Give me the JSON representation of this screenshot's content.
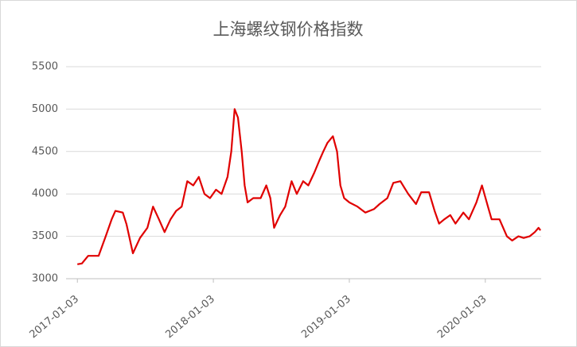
{
  "chart_data": {
    "type": "line",
    "title": "上海螺纹钢价格指数",
    "x": [
      "2017-01-03",
      "2017-01-15",
      "2017-02-01",
      "2017-03-01",
      "2017-03-20",
      "2017-04-05",
      "2017-04-15",
      "2017-05-05",
      "2017-05-15",
      "2017-06-01",
      "2017-06-20",
      "2017-07-10",
      "2017-07-25",
      "2017-08-10",
      "2017-08-25",
      "2017-09-10",
      "2017-09-25",
      "2017-10-10",
      "2017-10-25",
      "2017-11-10",
      "2017-11-25",
      "2017-12-10",
      "2017-12-25",
      "2018-01-10",
      "2018-01-25",
      "2018-02-10",
      "2018-02-20",
      "2018-03-01",
      "2018-03-10",
      "2018-03-20",
      "2018-03-28",
      "2018-04-05",
      "2018-04-20",
      "2018-05-10",
      "2018-05-25",
      "2018-06-05",
      "2018-06-15",
      "2018-07-01",
      "2018-07-15",
      "2018-08-01",
      "2018-08-15",
      "2018-09-01",
      "2018-09-15",
      "2018-10-01",
      "2018-10-15",
      "2018-10-25",
      "2018-11-05",
      "2018-11-20",
      "2018-12-01",
      "2018-12-10",
      "2018-12-20",
      "2019-01-03",
      "2019-01-25",
      "2019-02-15",
      "2019-03-10",
      "2019-03-25",
      "2019-04-15",
      "2019-05-01",
      "2019-05-20",
      "2019-06-10",
      "2019-07-01",
      "2019-07-15",
      "2019-08-05",
      "2019-08-20",
      "2019-09-01",
      "2019-09-15",
      "2019-10-01",
      "2019-10-15",
      "2019-11-05",
      "2019-11-20",
      "2019-12-10",
      "2019-12-25",
      "2020-01-10",
      "2020-01-20",
      "2020-02-10",
      "2020-03-01",
      "2020-03-15",
      "2020-04-01",
      "2020-04-15",
      "2020-05-01",
      "2020-05-15",
      "2020-05-25",
      "2020-05-30"
    ],
    "values": [
      3170,
      3180,
      3270,
      3270,
      3500,
      3700,
      3800,
      3780,
      3640,
      3300,
      3480,
      3600,
      3850,
      3700,
      3550,
      3700,
      3800,
      3850,
      4150,
      4100,
      4200,
      4000,
      3950,
      4050,
      4000,
      4200,
      4500,
      5000,
      4900,
      4500,
      4100,
      3900,
      3950,
      3950,
      4100,
      3950,
      3600,
      3750,
      3850,
      4150,
      4000,
      4150,
      4100,
      4250,
      4400,
      4500,
      4600,
      4680,
      4500,
      4100,
      3950,
      3900,
      3850,
      3780,
      3820,
      3880,
      3950,
      4130,
      4150,
      4000,
      3880,
      4020,
      4020,
      3800,
      3650,
      3700,
      3750,
      3650,
      3780,
      3700,
      3900,
      4100,
      3850,
      3700,
      3700,
      3500,
      3450,
      3500,
      3480,
      3500,
      3550,
      3600,
      3570
    ],
    "color": "#e00000",
    "xlim": [
      "2016-12-10",
      "2020-06-01"
    ],
    "xticks": [
      "2017-01-03",
      "2018-01-03",
      "2019-01-03",
      "2020-01-03"
    ],
    "ylim": [
      3000,
      5500
    ],
    "yticks": [
      3000,
      3500,
      4000,
      4500,
      5000,
      5500
    ],
    "grid": true
  }
}
